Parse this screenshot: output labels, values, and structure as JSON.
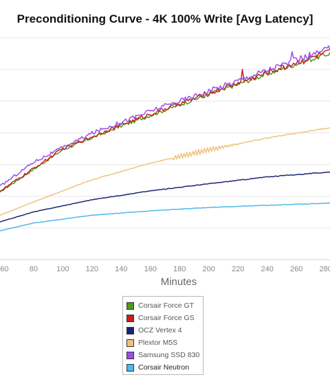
{
  "chart_data": {
    "type": "line",
    "title": "Preconditioning Curve - 4K 100% Write [Avg Latency]",
    "xlabel": "Minutes",
    "ylabel": "",
    "x_ticks": [
      60,
      80,
      100,
      120,
      140,
      160,
      180,
      200,
      220,
      240,
      260,
      280
    ],
    "xlim": [
      57,
      283
    ],
    "ylim": [
      0,
      100
    ],
    "grid": true,
    "legend_position": "bottom",
    "series": [
      {
        "name": "Corsair Force GT",
        "color": "#4d9a1d",
        "x": [
          57,
          100,
          140,
          180,
          220,
          260,
          283
        ],
        "y": [
          30.5,
          49.5,
          60.2,
          69.8,
          79.1,
          88.2,
          93.0
        ]
      },
      {
        "name": "Corsair Force GS",
        "color": "#c8201f",
        "x": [
          57,
          100,
          140,
          180,
          220,
          260,
          283
        ],
        "y": [
          30.8,
          50.0,
          60.8,
          70.3,
          79.6,
          88.8,
          93.6
        ]
      },
      {
        "name": "OCZ Vertex 4",
        "color": "#1a2473",
        "x": [
          57,
          80,
          120,
          160,
          200,
          240,
          283
        ],
        "y": [
          17.0,
          21.5,
          27.0,
          31.0,
          34.2,
          37.3,
          39.5
        ]
      },
      {
        "name": "Plextor M5S",
        "color": "#f0c37f",
        "x": [
          57,
          80,
          120,
          160,
          200,
          240,
          283
        ],
        "y": [
          20.0,
          26.0,
          36.0,
          43.5,
          49.5,
          54.8,
          59.5
        ]
      },
      {
        "name": "Samsung SSD 830",
        "color": "#9a4fe8",
        "x": [
          57,
          80,
          120,
          160,
          200,
          240,
          283
        ],
        "y": [
          33.0,
          44.0,
          57.0,
          67.0,
          76.0,
          85.5,
          95.0
        ]
      },
      {
        "name": "Corsair Neutron",
        "color": "#4db8ea",
        "x": [
          57,
          80,
          120,
          160,
          200,
          240,
          283
        ],
        "y": [
          13.0,
          16.5,
          20.0,
          22.0,
          23.5,
          24.5,
          25.5
        ]
      }
    ]
  }
}
